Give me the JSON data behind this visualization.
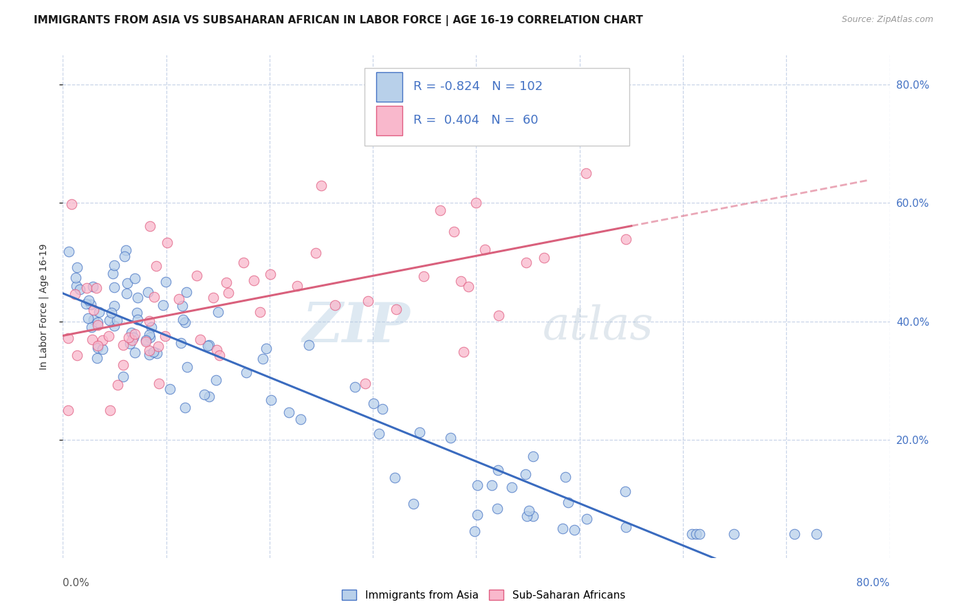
{
  "title": "IMMIGRANTS FROM ASIA VS SUBSAHARAN AFRICAN IN LABOR FORCE | AGE 16-19 CORRELATION CHART",
  "source_text": "Source: ZipAtlas.com",
  "ylabel": "In Labor Force | Age 16-19",
  "xlim": [
    0.0,
    0.8
  ],
  "ylim": [
    0.0,
    0.85
  ],
  "ytick_positions": [
    0.2,
    0.4,
    0.6,
    0.8
  ],
  "ytick_labels": [
    "20.0%",
    "40.0%",
    "60.0%",
    "80.0%"
  ],
  "asia_fill_color": "#b8d0ea",
  "asia_edge_color": "#4472c4",
  "africa_fill_color": "#f9b8cc",
  "africa_edge_color": "#e05c80",
  "asia_line_color": "#3a6bbf",
  "africa_line_color": "#d9607c",
  "label_color": "#4472c4",
  "background_color": "#ffffff",
  "grid_color": "#c8d4e8",
  "legend_R_asia": "-0.824",
  "legend_N_asia": "102",
  "legend_R_africa": "0.404",
  "legend_N_africa": "60",
  "watermark_zip": "ZIP",
  "watermark_atlas": "atlas",
  "title_fontsize": 11,
  "axis_label_fontsize": 10,
  "tick_fontsize": 11,
  "legend_fontsize": 13
}
